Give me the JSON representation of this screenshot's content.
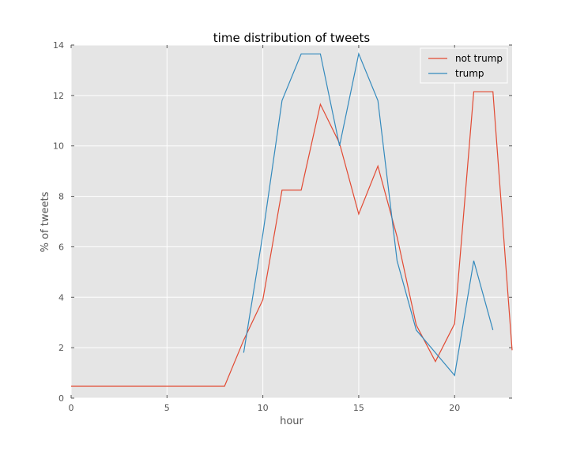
{
  "chart_data": {
    "type": "line",
    "title": "time distribution of tweets",
    "xlabel": "hour",
    "ylabel": "% of tweets",
    "xlim": [
      0,
      23
    ],
    "ylim": [
      0,
      14
    ],
    "xticks": [
      0,
      5,
      10,
      15,
      20
    ],
    "yticks": [
      0,
      2,
      4,
      6,
      8,
      10,
      12,
      14
    ],
    "grid": true,
    "legend_position": "top-right",
    "series": [
      {
        "name": "not trump",
        "color": "#E24A33",
        "x": [
          0,
          1,
          2,
          3,
          4,
          5,
          6,
          7,
          8,
          9,
          10,
          11,
          12,
          13,
          14,
          15,
          16,
          17,
          18,
          19,
          20,
          21,
          22,
          23
        ],
        "y": [
          0.47,
          0.47,
          0.47,
          0.47,
          0.47,
          0.47,
          0.47,
          0.47,
          0.47,
          2.3,
          3.9,
          8.25,
          8.25,
          11.65,
          10.1,
          7.3,
          9.2,
          6.4,
          2.9,
          1.45,
          2.95,
          12.15,
          12.15,
          1.9
        ]
      },
      {
        "name": "trump",
        "color": "#348ABD",
        "x": [
          9,
          10,
          11,
          12,
          13,
          14,
          15,
          16,
          17,
          18,
          19,
          20,
          21,
          22
        ],
        "y": [
          1.8,
          6.5,
          11.8,
          13.65,
          13.65,
          10.0,
          13.65,
          11.8,
          5.45,
          2.7,
          1.8,
          0.9,
          5.45,
          2.7
        ]
      }
    ]
  }
}
